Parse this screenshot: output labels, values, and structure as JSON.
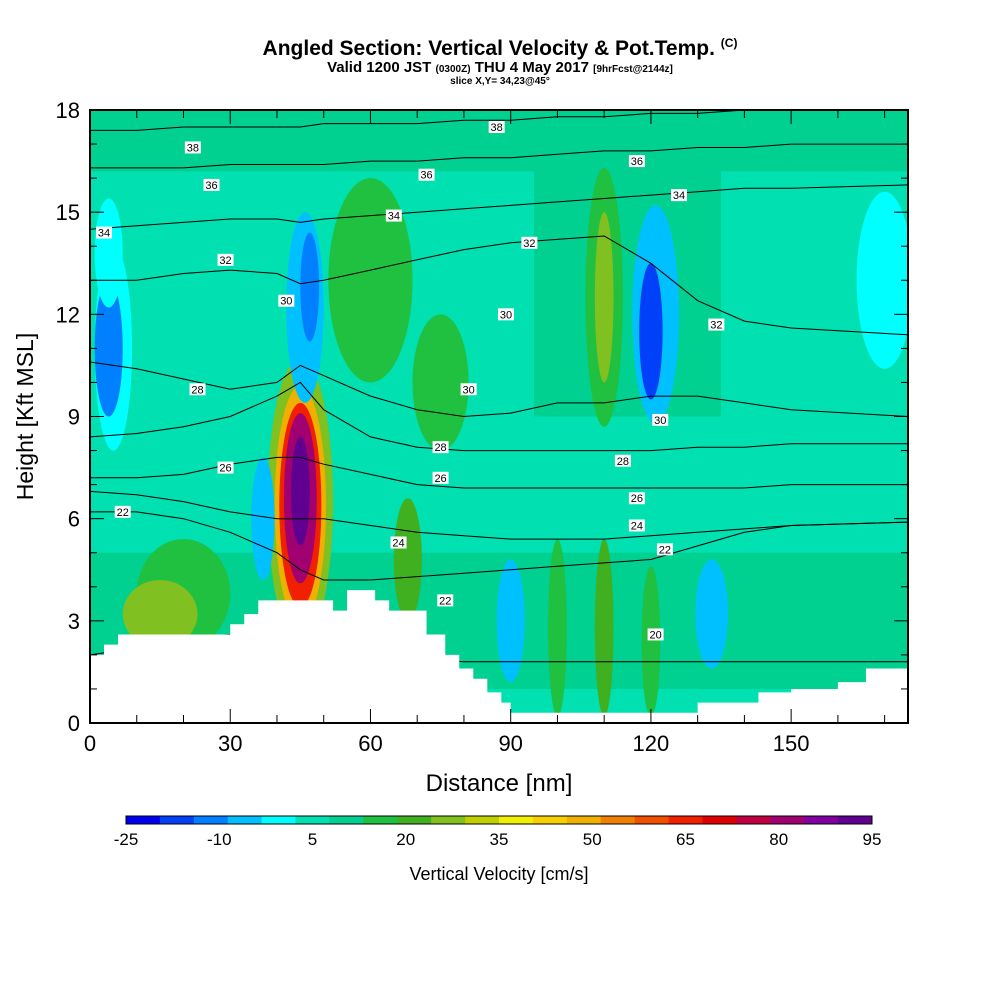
{
  "header": {
    "title": "Angled Section: Vertical Velocity & Pot.Temp.",
    "title_tag": "(C)",
    "valid_prefix": "Valid 1200 JST",
    "valid_utc": "(0300Z)",
    "valid_date": "THU 4 May 2017",
    "forecast": "[9hrFcst@2144z]",
    "slice": "slice X,Y= 34,23@45°"
  },
  "chart_data": {
    "type": "heatmap",
    "xlabel": "Distance [nm]",
    "ylabel": "Height [Kft MSL]",
    "xlim": [
      0,
      175
    ],
    "ylim": [
      0,
      18
    ],
    "xticks": [
      0,
      30,
      60,
      90,
      120,
      150
    ],
    "yticks": [
      0,
      3,
      6,
      9,
      12,
      15,
      18
    ],
    "colorbar": {
      "label": "Vertical Velocity [cm/s]",
      "tick_labels": [
        "-25",
        "-10",
        "5",
        "20",
        "35",
        "50",
        "65",
        "80",
        "95"
      ],
      "levels_start": -25,
      "level_step": 5,
      "colors": [
        "#0000f0",
        "#0040f8",
        "#0080ff",
        "#00c0ff",
        "#00ffff",
        "#00e0b0",
        "#00d090",
        "#20c040",
        "#40b020",
        "#80c020",
        "#c0d000",
        "#f0f000",
        "#f8d000",
        "#f0b000",
        "#f08000",
        "#f05000",
        "#f02000",
        "#e00000",
        "#c00040",
        "#a00070",
        "#8000a0",
        "#600090"
      ]
    },
    "terrain_kft": {
      "x": [
        0,
        3,
        6,
        20,
        30,
        33,
        36,
        40,
        49,
        52,
        55,
        61,
        64,
        68,
        72,
        76,
        79,
        82,
        85,
        88,
        90,
        130,
        143,
        150,
        160,
        166,
        175
      ],
      "h": [
        2.0,
        2.3,
        2.6,
        2.6,
        2.9,
        3.2,
        3.6,
        3.6,
        3.6,
        3.3,
        3.9,
        3.6,
        3.3,
        3.3,
        2.6,
        2.0,
        1.6,
        1.3,
        0.9,
        0.6,
        0.3,
        0.6,
        0.9,
        1.0,
        1.2,
        1.6,
        1.6
      ]
    },
    "theta_contours": [
      {
        "label": "20",
        "y": [
          2.0,
          2.2,
          2.5,
          2.6,
          2.5,
          2.4,
          2.2,
          2.0,
          1.9,
          1.8,
          1.8,
          1.8,
          1.8,
          1.8,
          1.8,
          1.8,
          1.8,
          1.8
        ]
      },
      {
        "label": "22",
        "y": [
          6.2,
          6.2,
          6.0,
          5.6,
          5.0,
          4.5,
          4.2,
          4.2,
          4.3,
          4.4,
          4.5,
          4.6,
          4.7,
          4.8,
          5.2,
          5.6,
          5.8,
          5.9
        ]
      },
      {
        "label": "24",
        "y": [
          6.8,
          6.7,
          6.5,
          6.2,
          6.0,
          6.0,
          6.0,
          5.8,
          5.6,
          5.5,
          5.4,
          5.4,
          5.4,
          5.5,
          5.6,
          5.7,
          5.8,
          5.9
        ]
      },
      {
        "label": "26",
        "y": [
          7.2,
          7.2,
          7.3,
          7.6,
          7.8,
          7.8,
          7.6,
          7.3,
          7.0,
          6.9,
          6.9,
          6.9,
          6.9,
          6.9,
          6.9,
          6.9,
          7.0,
          7.0
        ]
      },
      {
        "label": "28",
        "y": [
          8.4,
          8.5,
          8.7,
          9.0,
          9.6,
          10.0,
          9.2,
          8.4,
          8.1,
          8.0,
          8.0,
          8.0,
          8.0,
          8.0,
          8.1,
          8.1,
          8.2,
          8.2
        ]
      },
      {
        "label": "30",
        "y": [
          10.6,
          10.4,
          10.1,
          9.8,
          10.0,
          10.5,
          10.2,
          9.6,
          9.2,
          9.0,
          9.1,
          9.4,
          9.4,
          9.6,
          9.6,
          9.4,
          9.2,
          9.0
        ]
      },
      {
        "label": "32",
        "y": [
          13.0,
          13.0,
          13.2,
          13.3,
          13.2,
          12.9,
          13.0,
          13.3,
          13.6,
          13.9,
          14.1,
          14.2,
          14.3,
          13.5,
          12.4,
          11.8,
          11.6,
          11.4
        ]
      },
      {
        "label": "34",
        "y": [
          14.5,
          14.6,
          14.7,
          14.8,
          14.8,
          14.7,
          14.8,
          14.9,
          15.0,
          15.1,
          15.2,
          15.3,
          15.4,
          15.5,
          15.6,
          15.7,
          15.7,
          15.8
        ]
      },
      {
        "label": "36",
        "y": [
          16.3,
          16.3,
          16.3,
          16.4,
          16.4,
          16.4,
          16.4,
          16.5,
          16.5,
          16.6,
          16.6,
          16.7,
          16.8,
          16.8,
          16.9,
          16.9,
          17.0,
          17.0
        ]
      },
      {
        "label": "38",
        "y": [
          17.4,
          17.4,
          17.5,
          17.5,
          17.5,
          17.5,
          17.6,
          17.6,
          17.6,
          17.7,
          17.7,
          17.8,
          17.8,
          17.9,
          17.9,
          18.0,
          18.0,
          18.0
        ]
      }
    ],
    "contour_x": [
      0,
      10,
      20,
      30,
      40,
      45,
      50,
      60,
      70,
      80,
      90,
      100,
      110,
      120,
      130,
      140,
      150,
      175
    ],
    "contour_labels": [
      {
        "text": "38",
        "x": 22,
        "y": 16.9
      },
      {
        "text": "36",
        "x": 26,
        "y": 15.8
      },
      {
        "text": "34",
        "x": 3,
        "y": 14.4
      },
      {
        "text": "32",
        "x": 29,
        "y": 13.6
      },
      {
        "text": "30",
        "x": 42,
        "y": 12.4
      },
      {
        "text": "28",
        "x": 23,
        "y": 9.8
      },
      {
        "text": "26",
        "x": 29,
        "y": 7.5
      },
      {
        "text": "22",
        "x": 7,
        "y": 6.2
      },
      {
        "text": "38",
        "x": 87,
        "y": 17.5
      },
      {
        "text": "36",
        "x": 72,
        "y": 16.1
      },
      {
        "text": "34",
        "x": 65,
        "y": 14.9
      },
      {
        "text": "32",
        "x": 94,
        "y": 14.1
      },
      {
        "text": "30",
        "x": 89,
        "y": 12.0
      },
      {
        "text": "30",
        "x": 81,
        "y": 9.8
      },
      {
        "text": "28",
        "x": 75,
        "y": 8.1
      },
      {
        "text": "26",
        "x": 75,
        "y": 7.2
      },
      {
        "text": "24",
        "x": 66,
        "y": 5.3
      },
      {
        "text": "22",
        "x": 76,
        "y": 3.6
      },
      {
        "text": "36",
        "x": 117,
        "y": 16.5
      },
      {
        "text": "34",
        "x": 126,
        "y": 15.5
      },
      {
        "text": "32",
        "x": 134,
        "y": 11.7
      },
      {
        "text": "30",
        "x": 122,
        "y": 8.9
      },
      {
        "text": "28",
        "x": 114,
        "y": 7.7
      },
      {
        "text": "26",
        "x": 117,
        "y": 6.6
      },
      {
        "text": "24",
        "x": 117,
        "y": 5.8
      },
      {
        "text": "22",
        "x": 123,
        "y": 5.1
      },
      {
        "text": "20",
        "x": 121,
        "y": 2.6
      }
    ],
    "velocity_cells": [
      {
        "cx": 45,
        "cy": 6.5,
        "rx": 7,
        "ry": 4.2,
        "level": 20
      },
      {
        "cx": 45,
        "cy": 6.4,
        "rx": 5.5,
        "ry": 3.5,
        "level": 40
      },
      {
        "cx": 45,
        "cy": 6.4,
        "rx": 4.5,
        "ry": 3.0,
        "level": 55
      },
      {
        "cx": 45,
        "cy": 6.6,
        "rx": 3.5,
        "ry": 2.5,
        "level": 70
      },
      {
        "cx": 45,
        "cy": 6.8,
        "rx": 2.0,
        "ry": 1.6,
        "level": 85
      },
      {
        "cx": 46,
        "cy": 6.8,
        "rx": 1.0,
        "ry": 0.9,
        "level": 95
      },
      {
        "cx": 5,
        "cy": 11,
        "rx": 4,
        "ry": 3,
        "level": -5
      },
      {
        "cx": 4,
        "cy": 11,
        "rx": 3,
        "ry": 2,
        "level": -15
      },
      {
        "cx": 4,
        "cy": 13.8,
        "rx": 3,
        "ry": 1.6,
        "level": -5
      },
      {
        "cx": 46,
        "cy": 12.2,
        "rx": 4,
        "ry": 2.8,
        "level": -10
      },
      {
        "cx": 47,
        "cy": 12.8,
        "rx": 2,
        "ry": 1.6,
        "level": -15
      },
      {
        "cx": 37,
        "cy": 6,
        "rx": 2.5,
        "ry": 1.8,
        "level": -10
      },
      {
        "cx": 121,
        "cy": 12,
        "rx": 5,
        "ry": 3.2,
        "level": -10
      },
      {
        "cx": 120,
        "cy": 11.5,
        "rx": 2.5,
        "ry": 2,
        "level": -20
      },
      {
        "cx": 133,
        "cy": 3.2,
        "rx": 3.5,
        "ry": 1.6,
        "level": -10
      },
      {
        "cx": 90,
        "cy": 3,
        "rx": 3,
        "ry": 1.8,
        "level": -10
      },
      {
        "cx": 170,
        "cy": 13,
        "rx": 6,
        "ry": 2.6,
        "level": -5
      },
      {
        "cx": 110,
        "cy": 12.5,
        "rx": 4,
        "ry": 3.8,
        "level": 10
      },
      {
        "cx": 110,
        "cy": 12.5,
        "rx": 2,
        "ry": 2.5,
        "level": 20
      },
      {
        "cx": 68,
        "cy": 4.8,
        "rx": 3,
        "ry": 1.8,
        "level": 15
      },
      {
        "cx": 110,
        "cy": 2.8,
        "rx": 2,
        "ry": 2.6,
        "level": 15
      },
      {
        "cx": 100,
        "cy": 2.8,
        "rx": 2,
        "ry": 2.6,
        "level": 10
      },
      {
        "cx": 120,
        "cy": 2.4,
        "rx": 2,
        "ry": 2.2,
        "level": 10
      },
      {
        "cx": 20,
        "cy": 3.8,
        "rx": 10,
        "ry": 1.6,
        "level": 10
      },
      {
        "cx": 15,
        "cy": 3.2,
        "rx": 8,
        "ry": 1,
        "level": 20
      },
      {
        "cx": 75,
        "cy": 10,
        "rx": 6,
        "ry": 2,
        "level": 10
      },
      {
        "cx": 60,
        "cy": 13,
        "rx": 9,
        "ry": 3,
        "level": 10
      }
    ]
  }
}
